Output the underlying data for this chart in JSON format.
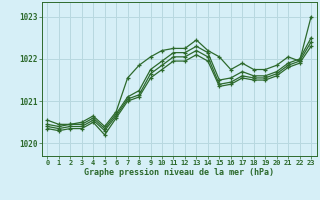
{
  "title": "Graphe pression niveau de la mer (hPa)",
  "bg_color": "#d6eff7",
  "grid_color": "#b8d8e0",
  "line_color": "#2d6a2d",
  "xlim": [
    -0.5,
    23.5
  ],
  "ylim": [
    1019.7,
    1023.35
  ],
  "xticks": [
    0,
    1,
    2,
    3,
    4,
    5,
    6,
    7,
    8,
    9,
    10,
    11,
    12,
    13,
    14,
    15,
    16,
    17,
    18,
    19,
    20,
    21,
    22,
    23
  ],
  "yticks": [
    1020,
    1021,
    1022,
    1023
  ],
  "series": [
    [
      1020.55,
      1020.45,
      1020.45,
      1020.5,
      1020.65,
      1020.4,
      1020.75,
      1021.55,
      1021.85,
      1022.05,
      1022.2,
      1022.25,
      1022.25,
      1022.45,
      1022.2,
      1022.05,
      1021.75,
      1021.9,
      1021.75,
      1021.75,
      1021.85,
      1022.05,
      1021.95,
      1023.0
    ],
    [
      1020.45,
      1020.4,
      1020.45,
      1020.45,
      1020.6,
      1020.35,
      1020.7,
      1021.1,
      1021.25,
      1021.75,
      1021.95,
      1022.15,
      1022.15,
      1022.3,
      1022.15,
      1021.5,
      1021.55,
      1021.7,
      1021.6,
      1021.6,
      1021.7,
      1021.9,
      1022.0,
      1022.5
    ],
    [
      1020.4,
      1020.35,
      1020.4,
      1020.4,
      1020.55,
      1020.3,
      1020.65,
      1021.05,
      1021.15,
      1021.65,
      1021.85,
      1022.05,
      1022.05,
      1022.2,
      1022.05,
      1021.4,
      1021.45,
      1021.6,
      1021.55,
      1021.55,
      1021.65,
      1021.85,
      1021.95,
      1022.4
    ],
    [
      1020.35,
      1020.3,
      1020.35,
      1020.35,
      1020.5,
      1020.2,
      1020.6,
      1021.0,
      1021.1,
      1021.55,
      1021.75,
      1021.95,
      1021.95,
      1022.1,
      1021.95,
      1021.35,
      1021.4,
      1021.55,
      1021.5,
      1021.5,
      1021.6,
      1021.8,
      1021.9,
      1022.3
    ]
  ]
}
